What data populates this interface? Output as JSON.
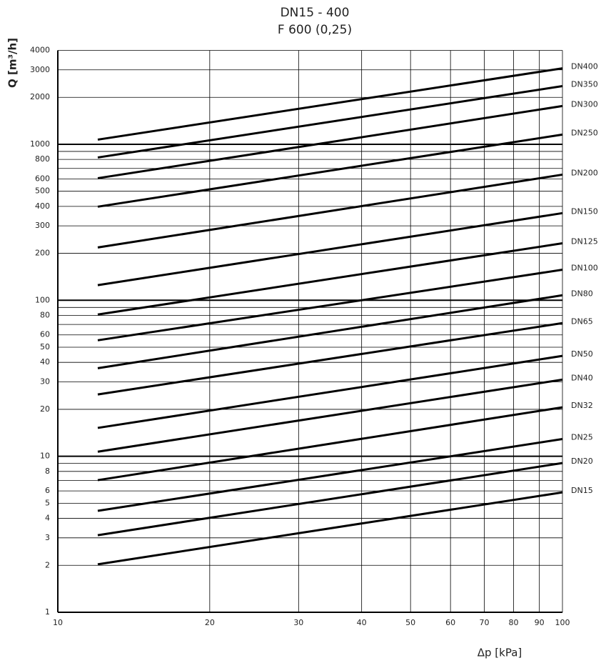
{
  "chart_data": {
    "type": "line",
    "title": "DN15 - 400",
    "subtitle": "F 600 (0,25)",
    "x_label": "Δp [kPa]",
    "y_label": "Q [m³/h]",
    "log_x": true,
    "log_y": true,
    "grid": true,
    "xlim": [
      10,
      100
    ],
    "xticks": [
      10,
      20,
      30,
      40,
      50,
      60,
      70,
      80,
      90,
      100
    ],
    "ylim": [
      1,
      4000
    ],
    "yticks": [
      1,
      2,
      3,
      4,
      5,
      6,
      8,
      10,
      20,
      30,
      40,
      50,
      60,
      80,
      100,
      200,
      300,
      400,
      500,
      600,
      800,
      1000,
      2000,
      3000,
      4000
    ],
    "y_minor_gridlines": [
      7,
      9,
      70,
      90,
      700,
      900
    ],
    "x": [
      12,
      100
    ],
    "series": [
      {
        "name": "DN15",
        "color": "#000000",
        "values": [
          2.03,
          5.87
        ]
      },
      {
        "name": "DN20",
        "color": "#000000",
        "values": [
          3.12,
          9.05
        ]
      },
      {
        "name": "DN25",
        "color": "#000000",
        "values": [
          4.47,
          12.9
        ]
      },
      {
        "name": "DN32",
        "color": "#000000",
        "values": [
          7.03,
          20.6
        ]
      },
      {
        "name": "DN40",
        "color": "#000000",
        "values": [
          10.7,
          31.0
        ]
      },
      {
        "name": "DN50",
        "color": "#000000",
        "values": [
          15.2,
          44.0
        ]
      },
      {
        "name": "DN65",
        "color": "#000000",
        "values": [
          24.9,
          71.4
        ]
      },
      {
        "name": "DN80",
        "color": "#000000",
        "values": [
          36.7,
          107.7
        ]
      },
      {
        "name": "DN100",
        "color": "#000000",
        "values": [
          55.4,
          157
        ]
      },
      {
        "name": "DN125",
        "color": "#000000",
        "values": [
          81,
          232
        ]
      },
      {
        "name": "DN150",
        "color": "#000000",
        "values": [
          125,
          362
        ]
      },
      {
        "name": "DN200",
        "color": "#000000",
        "values": [
          218,
          639
        ]
      },
      {
        "name": "DN250",
        "color": "#000000",
        "values": [
          398,
          1154
        ]
      },
      {
        "name": "DN300",
        "color": "#000000",
        "values": [
          606,
          1759
        ]
      },
      {
        "name": "DN350",
        "color": "#000000",
        "values": [
          823,
          2360
        ]
      },
      {
        "name": "DN400",
        "color": "#000000",
        "values": [
          1071,
          3070
        ]
      }
    ]
  }
}
